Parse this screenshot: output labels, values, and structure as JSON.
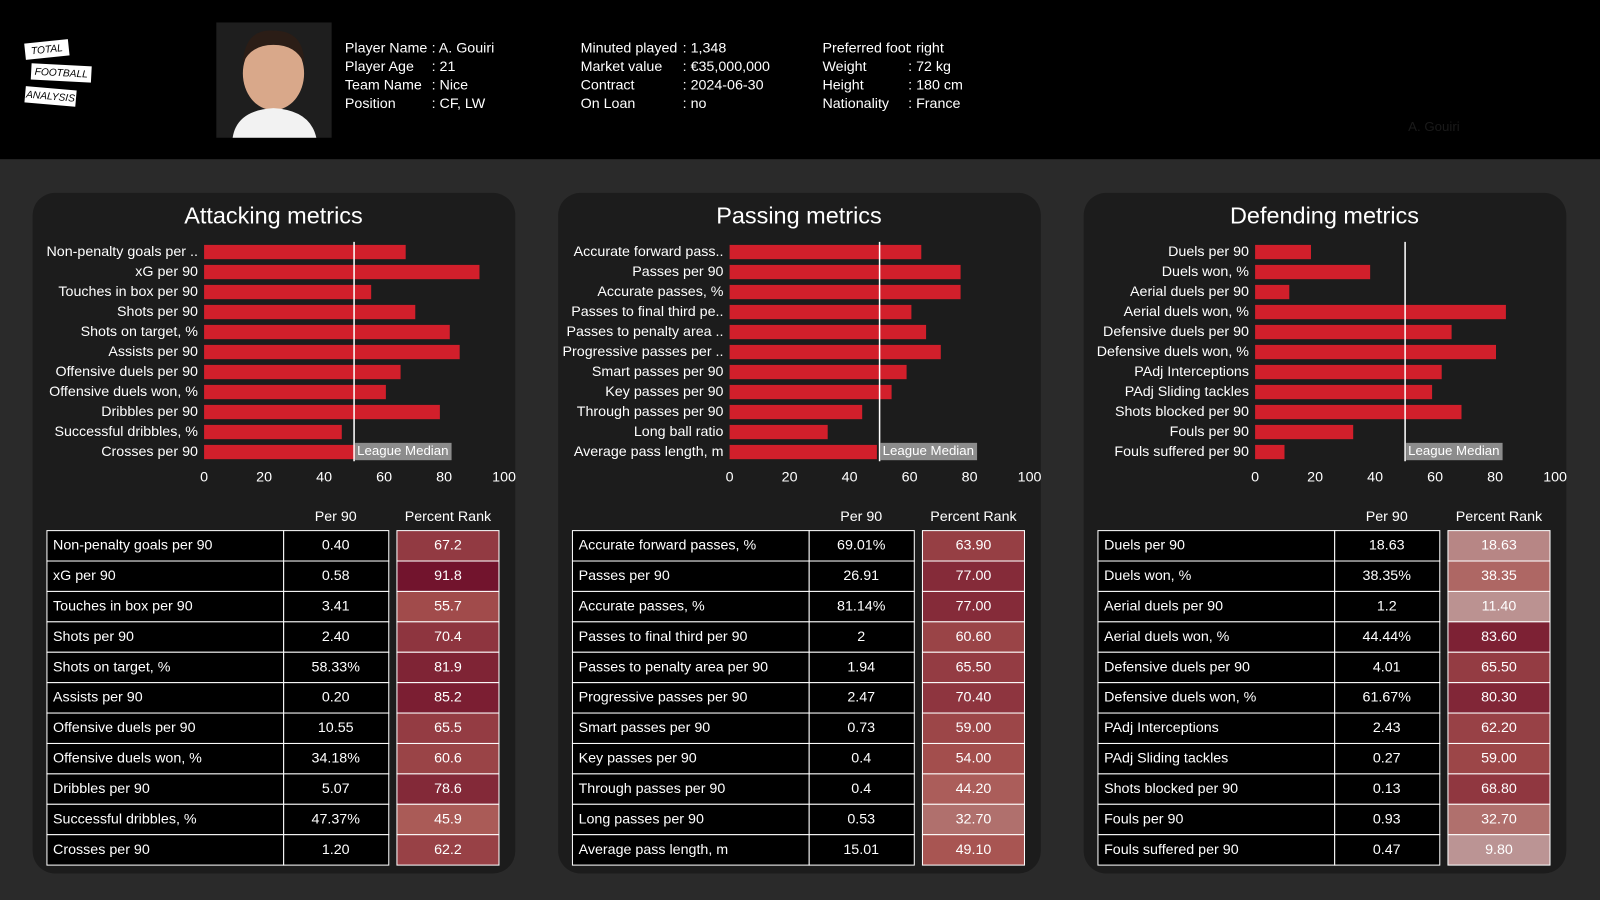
{
  "header": {
    "logo": [
      "TOTAL",
      "FOOTBALL",
      "ANALYSIS"
    ],
    "info": [
      [
        [
          "Player Name",
          ": A. Gouiri"
        ],
        [
          "Player Age",
          ": 21"
        ],
        [
          "Team Name",
          ": Nice"
        ],
        [
          "Position",
          ": CF, LW"
        ]
      ],
      [
        [
          "Minuted played",
          ": 1,348"
        ],
        [
          "Market value",
          ": €35,000,000"
        ],
        [
          "Contract",
          ": 2024-06-30"
        ],
        [
          "On Loan",
          ": no"
        ]
      ],
      [
        [
          "Preferred foot",
          ": right"
        ],
        [
          "Weight",
          ": 72 kg"
        ],
        [
          "Height",
          ": 180 cm"
        ],
        [
          "Nationality",
          ": France"
        ]
      ]
    ],
    "watermark": "A. Gouiri"
  },
  "chart_data": [
    {
      "type": "bar",
      "orientation": "horizontal",
      "title": "Attacking metrics",
      "color": "#d21f2b",
      "categories": [
        "Non-penalty goals per ..",
        "xG per 90",
        "Touches in box per 90",
        "Shots per 90",
        "Shots on target, %",
        "Assists per 90",
        "Offensive duels per 90",
        "Offensive duels won, %",
        "Dribbles per 90",
        "Successful dribbles, %",
        "Crosses per 90"
      ],
      "values": [
        67.2,
        91.8,
        55.7,
        70.4,
        81.9,
        85.2,
        65.5,
        60.6,
        78.6,
        45.9,
        62.2
      ],
      "xlim": [
        0,
        100
      ],
      "xticks": [
        0,
        20,
        40,
        60,
        80,
        100
      ],
      "median": 50,
      "annotation": "League Median"
    },
    {
      "type": "bar",
      "orientation": "horizontal",
      "title": "Passing metrics",
      "color": "#d21f2b",
      "categories": [
        "Accurate forward pass..",
        "Passes per 90",
        "Accurate passes, %",
        "Passes to final third pe..",
        "Passes to penalty area ..",
        "Progressive passes per ..",
        "Smart passes per 90",
        "Key passes per 90",
        "Through passes per 90",
        "Long ball ratio",
        "Average pass length, m"
      ],
      "values": [
        63.9,
        77,
        77,
        60.6,
        65.5,
        70.4,
        59,
        54,
        44.2,
        32.7,
        49.1
      ],
      "value_labels": [
        "63.90",
        "77.00",
        "77.00",
        "60.60",
        "65.50",
        "70.40",
        "59.00",
        "54.00",
        "44.20",
        "32.70",
        "49.10"
      ],
      "xlim": [
        0,
        100
      ],
      "xticks": [
        0,
        20,
        40,
        60,
        80,
        100
      ],
      "median": 50,
      "annotation": "League Median"
    },
    {
      "type": "bar",
      "orientation": "horizontal",
      "title": "Defending metrics",
      "color": "#d21f2b",
      "categories": [
        "Duels per 90",
        "Duels won, %",
        "Aerial duels per 90",
        "Aerial duels won, %",
        "Defensive duels per 90",
        "Defensive duels won, %",
        "PAdj Interceptions",
        "PAdj Sliding tackles",
        "Shots blocked per 90",
        "Fouls per 90",
        "Fouls suffered per 90"
      ],
      "values": [
        18.63,
        38.35,
        11.4,
        83.6,
        65.5,
        80.3,
        62.2,
        59,
        68.8,
        32.7,
        9.8
      ],
      "value_labels": [
        "18.63",
        "38.35",
        "11.40",
        "83.60",
        "65.50",
        "80.30",
        "62.20",
        "59.00",
        "68.80",
        "32.70",
        "9.80"
      ],
      "xlim": [
        0,
        100
      ],
      "xticks": [
        0,
        20,
        40,
        60,
        80,
        100
      ],
      "median": 50,
      "annotation": "League Median"
    }
  ],
  "tables": [
    {
      "columns": [
        "Per 90",
        "Percent Rank"
      ],
      "rows": [
        [
          "Non-penalty goals per 90",
          "0.40"
        ],
        [
          "xG per 90",
          "0.58"
        ],
        [
          "Touches in box per 90",
          "3.41"
        ],
        [
          "Shots per 90",
          "2.40"
        ],
        [
          "Shots on target, %",
          "58.33%"
        ],
        [
          "Assists per 90",
          "0.20"
        ],
        [
          "Offensive duels per 90",
          "10.55"
        ],
        [
          "Offensive duels won, %",
          "34.18%"
        ],
        [
          "Dribbles per 90",
          "5.07"
        ],
        [
          "Successful dribbles, %",
          "47.37%"
        ],
        [
          "Crosses per 90",
          "1.20"
        ]
      ]
    },
    {
      "columns": [
        "Per 90",
        "Percent Rank"
      ],
      "rows": [
        [
          "Accurate forward passes, %",
          "69.01%"
        ],
        [
          "Passes per 90",
          "26.91"
        ],
        [
          "Accurate passes, %",
          "81.14%"
        ],
        [
          "Passes to final third per 90",
          "2"
        ],
        [
          "Passes to penalty area per 90",
          "1.94"
        ],
        [
          "Progressive passes per 90",
          "2.47"
        ],
        [
          "Smart passes per 90",
          "0.73"
        ],
        [
          "Key passes per 90",
          "0.4"
        ],
        [
          "Through passes per 90",
          "0.4"
        ],
        [
          "Long passes per 90",
          "0.53"
        ],
        [
          "Average pass length, m",
          "15.01"
        ]
      ]
    },
    {
      "columns": [
        "Per 90",
        "Percent Rank"
      ],
      "rows": [
        [
          "Duels per 90",
          "18.63"
        ],
        [
          "Duels won, %",
          "38.35%"
        ],
        [
          "Aerial duels per 90",
          "1.2"
        ],
        [
          "Aerial duels won, %",
          "44.44%"
        ],
        [
          "Defensive duels per 90",
          "4.01"
        ],
        [
          "Defensive duels won, %",
          "61.67%"
        ],
        [
          "PAdj Interceptions",
          "2.43"
        ],
        [
          "PAdj Sliding tackles",
          "0.27"
        ],
        [
          "Shots blocked per 90",
          "0.13"
        ],
        [
          "Fouls per 90",
          "0.93"
        ],
        [
          "Fouls suffered per 90",
          "0.47"
        ]
      ]
    }
  ]
}
